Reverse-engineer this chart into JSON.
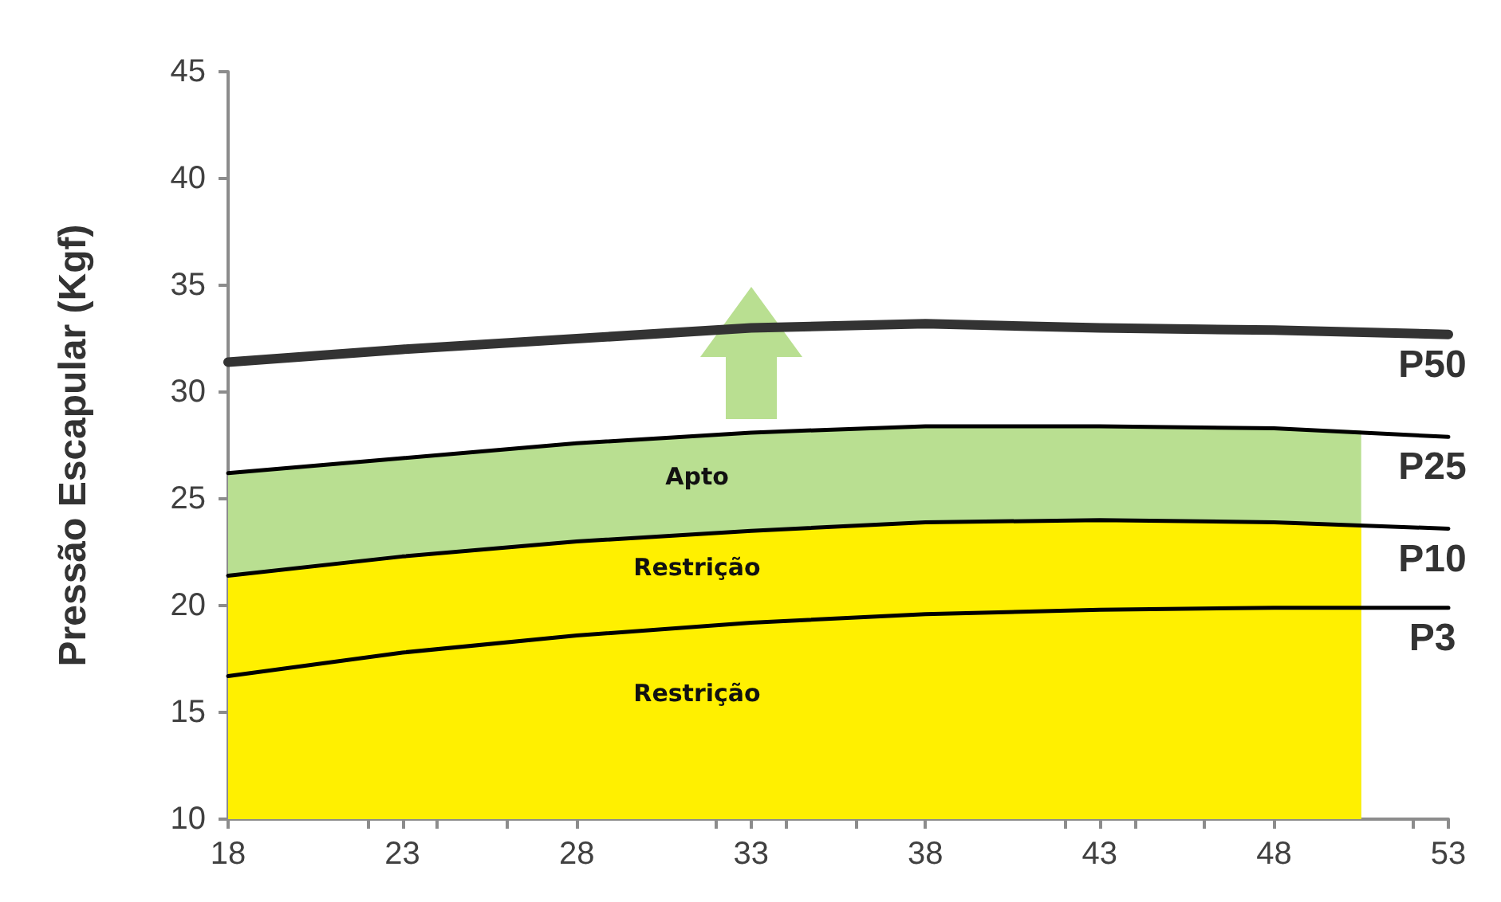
{
  "chart_data": {
    "type": "line",
    "ylabel": "Pressão Escapular (Kgf)",
    "xlim": [
      18,
      53
    ],
    "xticks": [
      18,
      23,
      28,
      33,
      38,
      43,
      48,
      53
    ],
    "ylim": [
      10,
      45
    ],
    "yticks": [
      10,
      15,
      20,
      25,
      30,
      35,
      40,
      45
    ],
    "grid": false,
    "legend": false,
    "marker": "none",
    "line_style": "solid",
    "series": [
      {
        "type": "area",
        "color": "#b9df91",
        "x": [
          18,
          23,
          28,
          33,
          38,
          43,
          48,
          50.5
        ],
        "values": [
          26.2,
          26.9,
          27.6,
          28.1,
          28.4,
          28.4,
          28.3,
          28.2
        ]
      },
      {
        "type": "area",
        "color": "#fff000",
        "x": [
          18,
          23,
          28,
          33,
          38,
          43,
          48,
          50.5
        ],
        "values": [
          21.4,
          22.3,
          23.0,
          23.5,
          23.9,
          24.0,
          23.9,
          23.8
        ]
      },
      {
        "name": "P50",
        "color": "#333333",
        "x": [
          18,
          23,
          28,
          33,
          38,
          43,
          48,
          53
        ],
        "values": [
          31.4,
          32.0,
          32.5,
          33.0,
          33.2,
          33.0,
          32.9,
          32.7
        ]
      },
      {
        "name": "P25",
        "color": "#000000",
        "x": [
          18,
          23,
          28,
          33,
          38,
          43,
          48,
          53
        ],
        "values": [
          26.2,
          26.9,
          27.6,
          28.1,
          28.4,
          28.4,
          28.3,
          27.9
        ]
      },
      {
        "name": "P10",
        "color": "#000000",
        "x": [
          18,
          23,
          28,
          33,
          38,
          43,
          48,
          53
        ],
        "values": [
          21.4,
          22.3,
          23.0,
          23.5,
          23.9,
          24.0,
          23.9,
          23.6
        ]
      },
      {
        "name": "P3",
        "color": "#000000",
        "x": [
          18,
          23,
          28,
          33,
          38,
          43,
          48,
          53
        ],
        "values": [
          16.7,
          17.8,
          18.6,
          19.2,
          19.6,
          19.8,
          19.9,
          19.9
        ]
      }
    ],
    "annotations": [
      "Apto",
      "Restrição",
      "Restrição"
    ]
  }
}
